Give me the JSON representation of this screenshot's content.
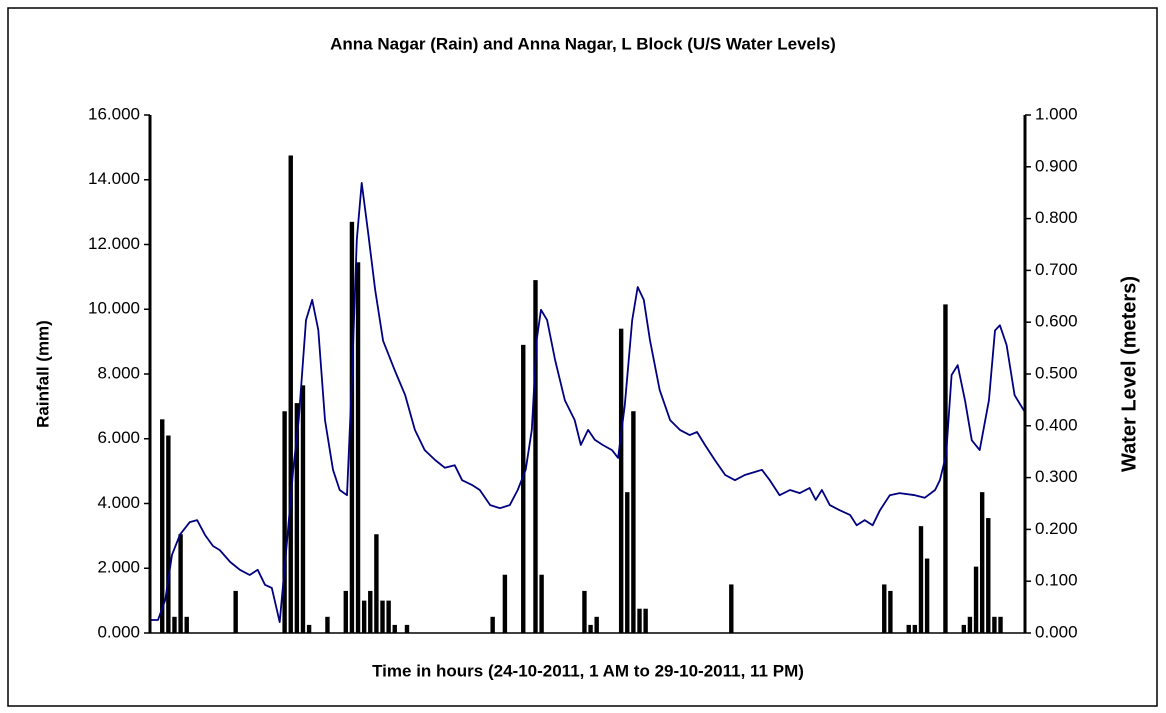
{
  "chart_data": {
    "type": "bar+line",
    "title": "Anna Nagar (Rain) and Anna Nagar, L Block (U/S Water Levels)",
    "x_label": "Time in hours (24-10-2011, 1 AM to 29-10-2011, 11 PM)",
    "y_label": "Rainfall (mm)",
    "y2_label": "Water Level (meters)",
    "xlim": [
      0,
      143
    ],
    "ylim": [
      0,
      16
    ],
    "yticks": [
      {
        "value": 0,
        "label": "0.000"
      },
      {
        "value": 2,
        "label": "2.000"
      },
      {
        "value": 4,
        "label": "4.000"
      },
      {
        "value": 6,
        "label": "6.000"
      },
      {
        "value": 8,
        "label": "8.000"
      },
      {
        "value": 10,
        "label": "10.000"
      },
      {
        "value": 12,
        "label": "12.000"
      },
      {
        "value": 14,
        "label": "14.000"
      },
      {
        "value": 16,
        "label": "16.000"
      }
    ],
    "y2lim": [
      0,
      1
    ],
    "y2ticks": [
      {
        "value": 0,
        "label": "0.000"
      },
      {
        "value": 0.1,
        "label": "0.100"
      },
      {
        "value": 0.2,
        "label": "0.200"
      },
      {
        "value": 0.3,
        "label": "0.300"
      },
      {
        "value": 0.4,
        "label": "0.400"
      },
      {
        "value": 0.5,
        "label": "0.500"
      },
      {
        "value": 0.6,
        "label": "0.600"
      },
      {
        "value": 0.7,
        "label": "0.700"
      },
      {
        "value": 0.8,
        "label": "0.800"
      },
      {
        "value": 0.9,
        "label": "0.900"
      },
      {
        "value": 1,
        "label": "1.000"
      }
    ],
    "grid": false,
    "series": [
      {
        "type": "bar",
        "axis": "y",
        "color": "#000000",
        "x": [
          2,
          3,
          4,
          5,
          6,
          14,
          22,
          23,
          24,
          25,
          26,
          29,
          32,
          33,
          34,
          35,
          36,
          37,
          38,
          39,
          40,
          42,
          56,
          58,
          61,
          63,
          64,
          71,
          72,
          73,
          77,
          78,
          79,
          80,
          81,
          95,
          120,
          121,
          124,
          125,
          126,
          127,
          130,
          133,
          134,
          135,
          136,
          137,
          138,
          139
        ],
        "values": [
          6.6,
          6.1,
          0.5,
          3.05,
          0.5,
          1.3,
          6.85,
          14.75,
          7.1,
          7.65,
          0.25,
          0.5,
          1.3,
          12.7,
          11.45,
          1.0,
          1.3,
          3.05,
          1.0,
          1.0,
          0.25,
          0.25,
          0.5,
          1.8,
          8.9,
          10.9,
          1.8,
          1.3,
          0.25,
          0.5,
          9.4,
          4.35,
          6.85,
          0.75,
          0.75,
          1.5,
          1.5,
          1.3,
          0.25,
          0.25,
          3.3,
          2.3,
          10.15,
          0.25,
          0.5,
          2.05,
          4.35,
          3.55,
          0.5,
          0.5
        ]
      },
      {
        "type": "line",
        "axis": "y2",
        "color": "#000080",
        "x": [
          0,
          1.3,
          2.5,
          3.6,
          4.9,
          6.5,
          7.7,
          9.0,
          10.3,
          11.4,
          13.1,
          14.7,
          16.3,
          17.6,
          18.8,
          19.9,
          21.2,
          22.4,
          23.4,
          24.3,
          25.5,
          26.5,
          27.5,
          28.6,
          29.9,
          31.0,
          32.2,
          33.0,
          33.8,
          34.6,
          35.6,
          36.8,
          38.1,
          40.0,
          41.7,
          43.3,
          44.9,
          46.6,
          48.2,
          49.8,
          51.0,
          52.6,
          53.9,
          55.6,
          57.2,
          58.8,
          60.1,
          61.4,
          62.4,
          63.2,
          63.9,
          64.9,
          66.2,
          67.8,
          69.4,
          70.4,
          71.6,
          72.7,
          74.0,
          75.5,
          76.5,
          77.6,
          78.8,
          79.7,
          80.7,
          81.7,
          83.3,
          85.0,
          86.6,
          88.2,
          89.4,
          90.7,
          92.3,
          94.0,
          95.6,
          97.2,
          98.9,
          100.0,
          101.3,
          102.9,
          104.6,
          106.2,
          107.8,
          108.8,
          109.8,
          111.1,
          112.7,
          114.4,
          115.5,
          116.8,
          118.1,
          119.3,
          120.9,
          122.5,
          125.0,
          126.6,
          128.3,
          129.1,
          130.1,
          131.0,
          132.0,
          133.2,
          134.3,
          135.6,
          137.1,
          138.1,
          138.9,
          140.0,
          141.3,
          143.0
        ],
        "values": [
          0.025,
          0.025,
          0.064,
          0.151,
          0.19,
          0.214,
          0.218,
          0.189,
          0.168,
          0.16,
          0.137,
          0.122,
          0.112,
          0.122,
          0.093,
          0.087,
          0.021,
          0.179,
          0.315,
          0.411,
          0.604,
          0.643,
          0.585,
          0.411,
          0.315,
          0.276,
          0.266,
          0.488,
          0.759,
          0.869,
          0.778,
          0.662,
          0.564,
          0.507,
          0.459,
          0.392,
          0.353,
          0.334,
          0.319,
          0.324,
          0.295,
          0.286,
          0.276,
          0.247,
          0.241,
          0.247,
          0.276,
          0.315,
          0.392,
          0.566,
          0.624,
          0.604,
          0.527,
          0.449,
          0.411,
          0.363,
          0.392,
          0.373,
          0.363,
          0.353,
          0.338,
          0.44,
          0.604,
          0.668,
          0.643,
          0.566,
          0.469,
          0.411,
          0.392,
          0.382,
          0.388,
          0.363,
          0.334,
          0.305,
          0.295,
          0.305,
          0.311,
          0.315,
          0.295,
          0.266,
          0.276,
          0.27,
          0.28,
          0.257,
          0.276,
          0.247,
          0.237,
          0.228,
          0.208,
          0.218,
          0.208,
          0.237,
          0.266,
          0.27,
          0.266,
          0.261,
          0.276,
          0.295,
          0.344,
          0.498,
          0.517,
          0.449,
          0.372,
          0.353,
          0.449,
          0.584,
          0.594,
          0.556,
          0.459,
          0.426
        ]
      }
    ]
  }
}
